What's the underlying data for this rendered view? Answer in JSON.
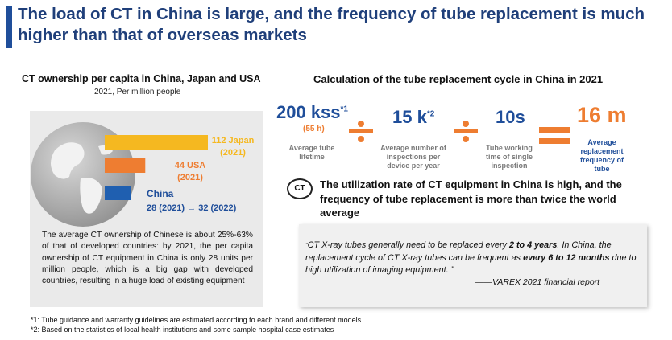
{
  "title": "The load of CT in China is large, and the frequency of tube replacement is much higher than that of overseas markets",
  "left": {
    "heading": "CT ownership per capita in China, Japan and USA",
    "subheading": "2021, Per million people",
    "chart_data": {
      "type": "bar",
      "orientation": "horizontal",
      "categories": [
        "Japan",
        "USA",
        "China"
      ],
      "values": [
        112,
        44,
        28
      ],
      "colors": [
        "#f5b820",
        "#ee7d31",
        "#1f5fb0"
      ],
      "labels": {
        "japan_1": "112 Japan",
        "japan_2": "(2021)",
        "usa_1": "44 USA",
        "usa_2": "(2021)",
        "china_1": "China",
        "china_2": "28 (2021) → 32 (2022)"
      }
    },
    "paragraph": "The average CT ownership of Chinese is about 25%-63% of that of developed countries: by 2021, the per capita ownership of CT equipment in China is only 28 units per million people, which is a big gap with developed countries, resulting in a huge load of existing equipment"
  },
  "right": {
    "heading": "Calculation of the tube replacement cycle in China in 2021",
    "calc": {
      "v1": "200 kss",
      "v1_sup": "*1",
      "v1_sub": "(55 h)",
      "v1_label": "Average tube lifetime",
      "op1": "÷",
      "v2": "15 k",
      "v2_sup": "*2",
      "v2_label": "Average number of inspections per device per year",
      "op2": "÷",
      "v3": "10s",
      "v3_label": "Tube working time of single inspection",
      "eq": "=",
      "v4": "16 m",
      "v4_label": "Average replacement frequency of tube"
    },
    "ct_icon": "CT",
    "note": "The utilization rate of CT equipment in China is high, and the frequency of tube replacement is more than twice the world average",
    "quote": {
      "open": "“",
      "p1": "CT X-ray tubes generally need to be replaced every ",
      "b1": "2 to 4 years",
      "p2": ". In China, the replacement cycle of CT X-ray tubes can be frequent as ",
      "b2": "every 6 to 12 months",
      "p3": " due to high utilization of imaging equipment.",
      "close": "”",
      "source": "——VAREX 2021 financial report"
    }
  },
  "footnotes": [
    "*1: Tube guidance and warranty guidelines are estimated according to each brand and different models",
    "*2: Based on the statistics of local health institutions and some sample hospital case estimates"
  ],
  "colors": {
    "accent_blue": "#1f4e9a",
    "orange": "#ee7d31",
    "yellow": "#f5b820"
  }
}
